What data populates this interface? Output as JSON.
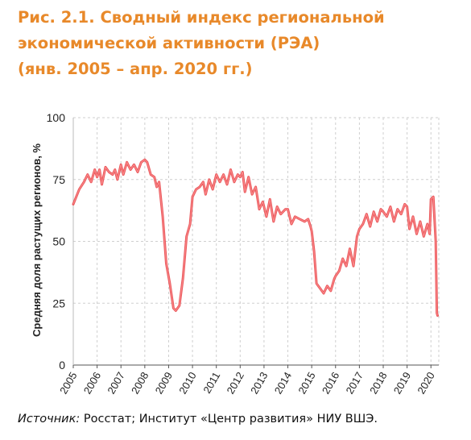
{
  "figure": {
    "title_lines": [
      "Рис. 2.1. Сводный индекс региональной",
      "экономической активности (РЭА)",
      "(янв. 2005 – апр. 2020 гг.)"
    ],
    "source_label": "Источник:",
    "source_text": " Росстат; Институт «Центр развития» НИУ ВШЭ.",
    "title_color": "#E8892A"
  },
  "chart_data": {
    "type": "line",
    "title": "",
    "xlabel": "",
    "ylabel": "Средняя доля растущих регионов, %",
    "ylim": [
      0,
      100
    ],
    "xlim": [
      2005,
      2020.33
    ],
    "yticks": [
      0,
      25,
      50,
      75,
      100
    ],
    "xticks": [
      "2005",
      "2006",
      "2007",
      "2008",
      "2009",
      "2010",
      "2011",
      "2012",
      "2013",
      "2014",
      "2015",
      "2016",
      "2017",
      "2018",
      "2019",
      "2020"
    ],
    "grid": true,
    "series": [
      {
        "color": "#E8464A",
        "points": [
          [
            2005.0,
            65
          ],
          [
            2005.25,
            71
          ],
          [
            2005.45,
            74
          ],
          [
            2005.6,
            77
          ],
          [
            2005.75,
            74
          ],
          [
            2005.9,
            79
          ],
          [
            2006.0,
            76
          ],
          [
            2006.1,
            79
          ],
          [
            2006.2,
            73
          ],
          [
            2006.35,
            80
          ],
          [
            2006.5,
            78
          ],
          [
            2006.65,
            77
          ],
          [
            2006.75,
            79
          ],
          [
            2006.85,
            75
          ],
          [
            2007.0,
            81
          ],
          [
            2007.1,
            77
          ],
          [
            2007.25,
            82
          ],
          [
            2007.4,
            79
          ],
          [
            2007.55,
            81
          ],
          [
            2007.7,
            78
          ],
          [
            2007.85,
            82
          ],
          [
            2008.0,
            83
          ],
          [
            2008.1,
            82
          ],
          [
            2008.25,
            77
          ],
          [
            2008.4,
            76
          ],
          [
            2008.5,
            72
          ],
          [
            2008.6,
            74
          ],
          [
            2008.75,
            60
          ],
          [
            2008.9,
            41
          ],
          [
            2009.05,
            33
          ],
          [
            2009.2,
            23
          ],
          [
            2009.3,
            22
          ],
          [
            2009.45,
            24
          ],
          [
            2009.6,
            35
          ],
          [
            2009.75,
            52
          ],
          [
            2009.9,
            57
          ],
          [
            2010.0,
            68
          ],
          [
            2010.15,
            71
          ],
          [
            2010.3,
            72
          ],
          [
            2010.45,
            74
          ],
          [
            2010.55,
            69
          ],
          [
            2010.7,
            75
          ],
          [
            2010.85,
            71
          ],
          [
            2011.0,
            77
          ],
          [
            2011.15,
            74
          ],
          [
            2011.3,
            77
          ],
          [
            2011.45,
            73
          ],
          [
            2011.6,
            79
          ],
          [
            2011.75,
            74
          ],
          [
            2011.9,
            77
          ],
          [
            2012.0,
            76
          ],
          [
            2012.1,
            78
          ],
          [
            2012.2,
            70
          ],
          [
            2012.35,
            76
          ],
          [
            2012.5,
            69
          ],
          [
            2012.65,
            72
          ],
          [
            2012.8,
            63
          ],
          [
            2012.95,
            66
          ],
          [
            2013.1,
            60
          ],
          [
            2013.25,
            67
          ],
          [
            2013.4,
            58
          ],
          [
            2013.55,
            64
          ],
          [
            2013.7,
            61
          ],
          [
            2013.9,
            63
          ],
          [
            2014.0,
            63
          ],
          [
            2014.15,
            57
          ],
          [
            2014.3,
            60
          ],
          [
            2014.5,
            59
          ],
          [
            2014.7,
            58
          ],
          [
            2014.85,
            59
          ],
          [
            2014.95,
            56
          ],
          [
            2015.0,
            54
          ],
          [
            2015.1,
            46
          ],
          [
            2015.2,
            33
          ],
          [
            2015.35,
            31
          ],
          [
            2015.5,
            29
          ],
          [
            2015.65,
            32
          ],
          [
            2015.8,
            30
          ],
          [
            2015.95,
            35
          ],
          [
            2016.0,
            36
          ],
          [
            2016.15,
            38
          ],
          [
            2016.3,
            43
          ],
          [
            2016.45,
            40
          ],
          [
            2016.6,
            47
          ],
          [
            2016.75,
            40
          ],
          [
            2016.9,
            52
          ],
          [
            2017.0,
            55
          ],
          [
            2017.15,
            57
          ],
          [
            2017.3,
            61
          ],
          [
            2017.45,
            56
          ],
          [
            2017.6,
            62
          ],
          [
            2017.75,
            58
          ],
          [
            2017.9,
            63
          ],
          [
            2018.0,
            62
          ],
          [
            2018.15,
            60
          ],
          [
            2018.3,
            64
          ],
          [
            2018.45,
            58
          ],
          [
            2018.6,
            63
          ],
          [
            2018.75,
            61
          ],
          [
            2018.9,
            65
          ],
          [
            2019.0,
            64
          ],
          [
            2019.1,
            55
          ],
          [
            2019.25,
            60
          ],
          [
            2019.4,
            53
          ],
          [
            2019.55,
            58
          ],
          [
            2019.7,
            52
          ],
          [
            2019.85,
            57
          ],
          [
            2019.95,
            53
          ],
          [
            2020.0,
            67
          ],
          [
            2020.1,
            68
          ],
          [
            2020.2,
            50
          ],
          [
            2020.25,
            21
          ],
          [
            2020.28,
            20
          ]
        ]
      }
    ]
  }
}
